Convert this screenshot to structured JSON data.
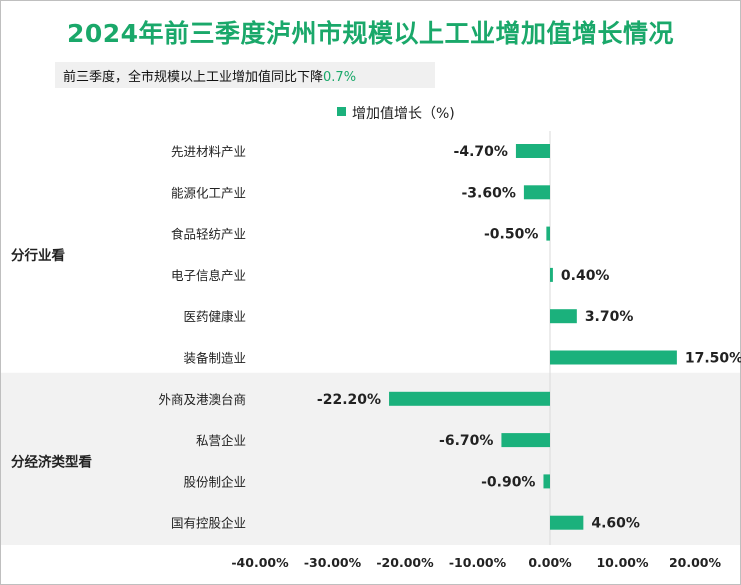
{
  "header": {
    "title": "2024年前三季度泸州市规模以上工业增加值增长情况",
    "subtitle_prefix": "前三季度，全市规模以上工业增加值同比下降",
    "subtitle_value": "0.7%"
  },
  "colors": {
    "accent": "#1aa86a",
    "bar": "#1bb17c",
    "band": "#f2f2f2"
  },
  "chart_data": {
    "type": "bar",
    "orientation": "horizontal",
    "legend": {
      "position": "top",
      "label": "增加值增长（%)"
    },
    "series": [
      {
        "name": "增加值增长（%)"
      }
    ],
    "groups": [
      {
        "label": "分行业看",
        "categories": [
          "先进材料产业",
          "能源化工产业",
          "食品轻纺产业",
          "电子信息产业",
          "医药健康业",
          "装备制造业"
        ],
        "values": [
          -4.7,
          -3.6,
          -0.5,
          0.4,
          3.7,
          17.5
        ],
        "value_labels": [
          "-4.70%",
          "-3.60%",
          "-0.50%",
          "0.40%",
          "3.70%",
          "17.50%"
        ]
      },
      {
        "label": "分经济类型看",
        "categories": [
          "外商及港澳台商",
          "私营企业",
          "股份制企业",
          "国有控股企业"
        ],
        "values": [
          -22.2,
          -6.7,
          -0.9,
          4.6
        ],
        "value_labels": [
          "-22.20%",
          "-6.70%",
          "-0.90%",
          "4.60%"
        ]
      }
    ],
    "xlim": [
      -40,
      20
    ],
    "xticks": [
      -40,
      -30,
      -20,
      -10,
      0,
      10,
      20
    ],
    "xtick_labels": [
      "-40.00%",
      "-30.00%",
      "-20.00%",
      "-10.00%",
      "0.00%",
      "10.00%",
      "20.00%"
    ],
    "grid": false
  }
}
